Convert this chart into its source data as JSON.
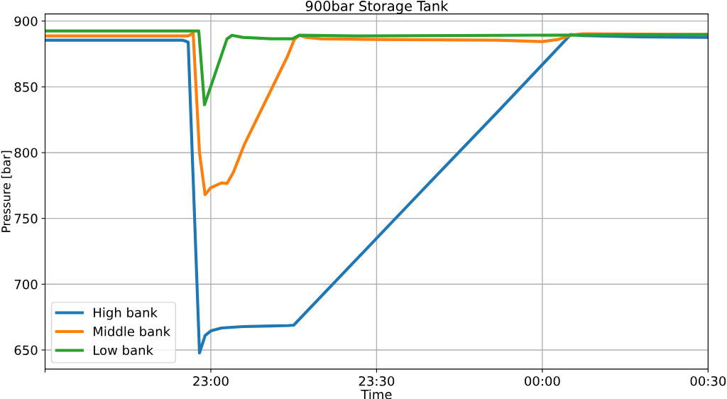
{
  "chart_data": {
    "type": "line",
    "title": "900bar Storage Tank",
    "xlabel": "Time",
    "ylabel": "Pressure [bar]",
    "xlim": [
      "2000-01-01T22:30",
      "2000-01-02T00:30"
    ],
    "xticks": [
      {
        "value": "2000-01-01T22:30",
        "label": null
      },
      {
        "value": "2000-01-01T23:00",
        "label": "23:00"
      },
      {
        "value": "2000-01-01T23:30",
        "label": "23:30"
      },
      {
        "value": "2000-01-02T00:00",
        "label": "00:00"
      },
      {
        "value": "2000-01-02T00:30",
        "label": "00:30"
      }
    ],
    "ylim": [
      635.5,
      905.4
    ],
    "yticks": [
      650,
      700,
      750,
      800,
      850,
      900
    ],
    "grid": true,
    "legend": "bottom left",
    "line_style": "solid",
    "marker": "none",
    "series": [
      {
        "name": "High bank",
        "color": "#1f77b4",
        "x": [
          "2000-01-01T22:30:00",
          "2000-01-01T22:54:52",
          "2000-01-01T22:55:54",
          "2000-01-01T22:57:57",
          "2000-01-01T22:58:58",
          "2000-01-01T23:00:00",
          "2000-01-01T23:01:55",
          "2000-01-01T23:05:46",
          "2000-01-01T23:10:54",
          "2000-01-01T23:14:06",
          "2000-01-01T23:15:00",
          "2000-01-01T23:30:00",
          "2000-01-01T23:39:06",
          "2000-01-01T23:51:55",
          "2000-01-02T00:00:00",
          "2000-01-02T00:05:08",
          "2000-01-02T00:07:18",
          "2000-01-02T00:17:34",
          "2000-01-02T00:30:00"
        ],
        "values": [
          885.5,
          885.5,
          884,
          647.8,
          661,
          664.5,
          666.7,
          667.8,
          668.3,
          668.6,
          668.9,
          734.9,
          775,
          831,
          866.9,
          889.8,
          889,
          888,
          887.6
        ]
      },
      {
        "name": "Middle bank",
        "color": "#ff7f0e",
        "x": [
          "2000-01-01T22:30:00",
          "2000-01-01T22:55:54",
          "2000-01-01T22:56:48",
          "2000-01-01T22:57:57",
          "2000-01-01T22:58:58",
          "2000-01-01T23:00:00",
          "2000-01-01T23:01:55",
          "2000-01-01T23:02:56",
          "2000-01-01T23:04:05",
          "2000-01-01T23:06:01",
          "2000-01-01T23:13:51",
          "2000-01-01T23:15:07",
          "2000-01-01T23:16:01",
          "2000-01-01T23:17:17",
          "2000-01-01T23:19:52",
          "2000-01-01T23:30:00",
          "2000-01-01T23:51:55",
          "2000-01-02T00:00:00",
          "2000-01-02T00:02:49",
          "2000-01-02T00:05:08",
          "2000-01-02T00:07:18",
          "2000-01-02T00:30:00"
        ],
        "values": [
          888.7,
          888.7,
          890.8,
          800,
          768,
          773.4,
          777,
          776.6,
          785,
          805.7,
          873,
          886,
          889.2,
          887.6,
          886.5,
          886,
          885.5,
          884.4,
          886,
          889.2,
          890.3,
          889.8
        ]
      },
      {
        "name": "Low bank",
        "color": "#2ca02c",
        "x": [
          "2000-01-01T22:30:00",
          "2000-01-01T22:57:49",
          "2000-01-01T22:58:51",
          "2000-01-01T23:00:00",
          "2000-01-01T23:02:56",
          "2000-01-01T23:03:50",
          "2000-01-01T23:05:46",
          "2000-01-01T23:10:54",
          "2000-01-01T23:14:45",
          "2000-01-01T23:16:01",
          "2000-01-01T23:26:09",
          "2000-01-02T00:30:00"
        ],
        "values": [
          892.5,
          892.5,
          836.4,
          850.4,
          886.5,
          889.2,
          887.6,
          886.5,
          886.5,
          889.2,
          888.7,
          889.8
        ]
      }
    ]
  }
}
